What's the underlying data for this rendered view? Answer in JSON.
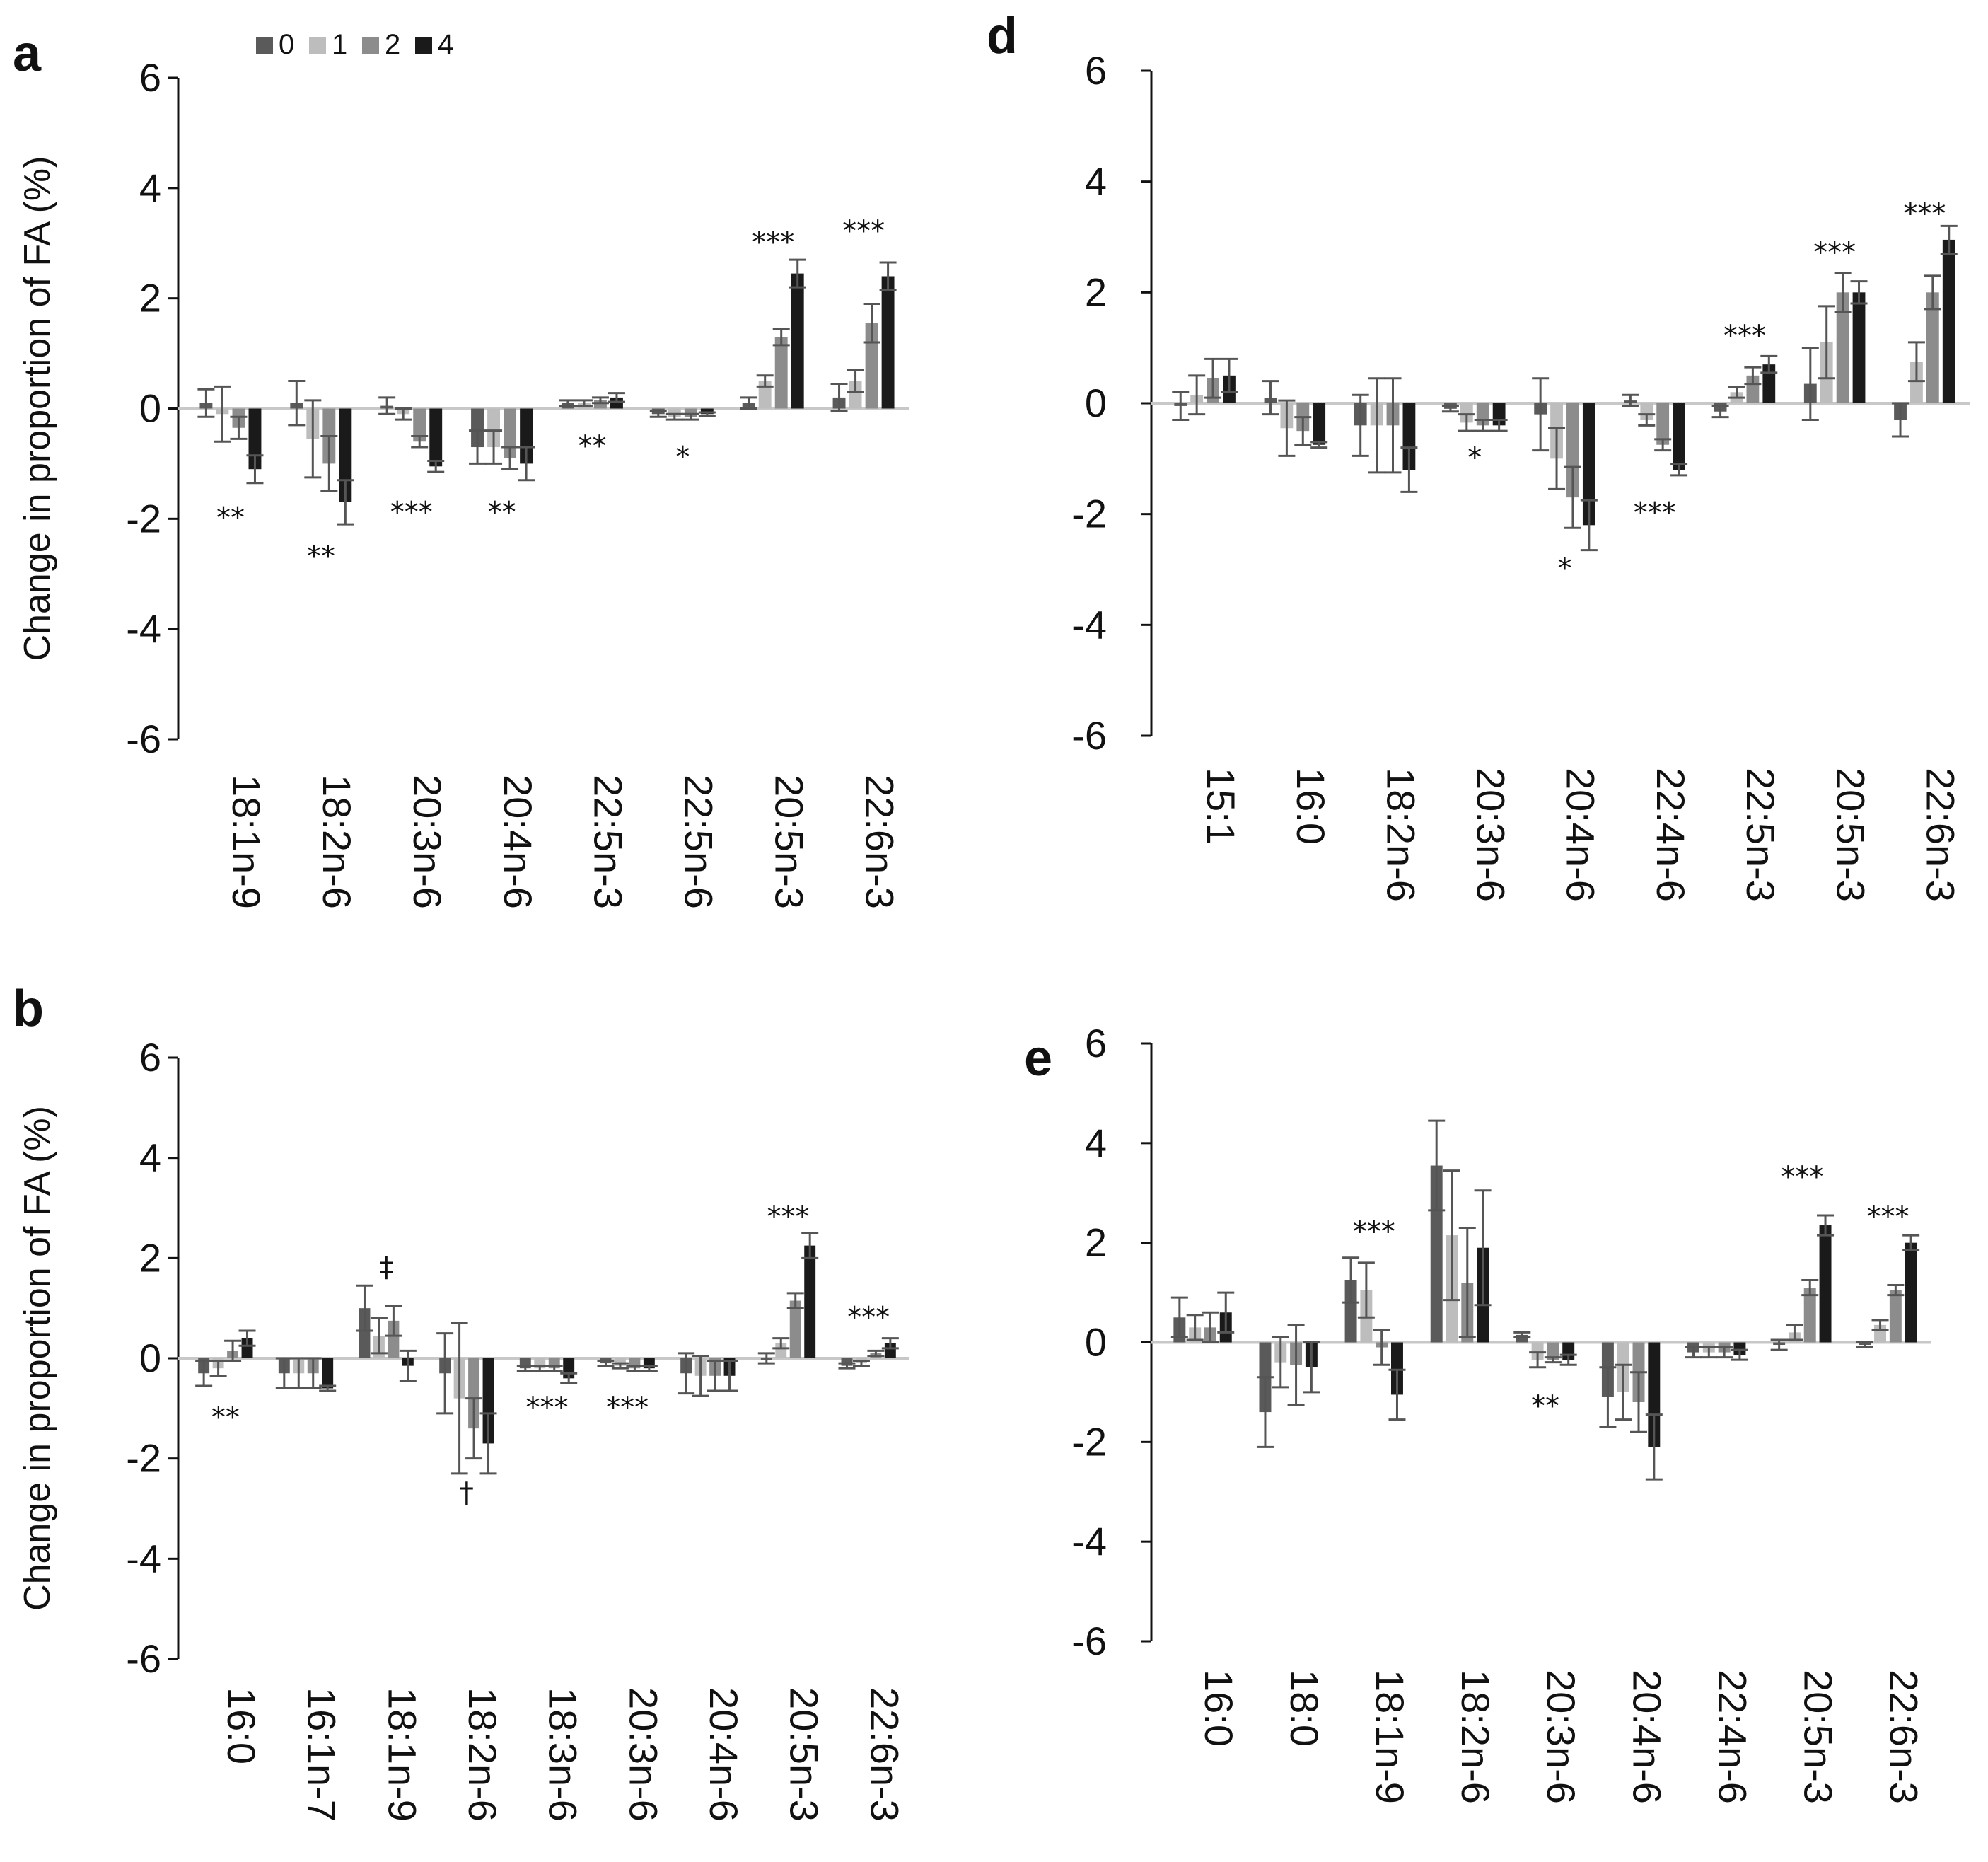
{
  "legend": {
    "title": "",
    "entries": [
      {
        "label": "0",
        "color": "#5a5a5a"
      },
      {
        "label": "1",
        "color": "#bdbdbd"
      },
      {
        "label": "2",
        "color": "#8c8c8c"
      },
      {
        "label": "4",
        "color": "#1a1a1a"
      }
    ]
  },
  "chart_data": [
    {
      "panel": "a",
      "type": "bar",
      "ylabel": "Change in proportion of FA (%)",
      "ylim": [
        -6,
        6
      ],
      "yticks": [
        "6",
        "4",
        "2",
        "0",
        "-2",
        "-4",
        "-6"
      ],
      "categories": [
        "18:1n-9",
        "18:2n-6",
        "20:3n-6",
        "20:4n-6",
        "22:5n-3",
        "22:5n-6",
        "20:5n-3",
        "22:6n-3"
      ],
      "series": [
        {
          "name": "0",
          "values": [
            0.1,
            0.1,
            0.05,
            -0.7,
            0.1,
            -0.1,
            0.1,
            0.2
          ],
          "errors": [
            0.25,
            0.4,
            0.15,
            0.3,
            0.05,
            0.05,
            0.1,
            0.25
          ]
        },
        {
          "name": "1",
          "values": [
            -0.1,
            -0.55,
            -0.1,
            -0.7,
            0.1,
            -0.15,
            0.5,
            0.5
          ],
          "errors": [
            0.5,
            0.7,
            0.1,
            0.3,
            0.05,
            0.05,
            0.1,
            0.2
          ]
        },
        {
          "name": "2",
          "values": [
            -0.35,
            -1.0,
            -0.6,
            -0.9,
            0.15,
            -0.15,
            1.3,
            1.55
          ],
          "errors": [
            0.2,
            0.5,
            0.1,
            0.2,
            0.05,
            0.05,
            0.15,
            0.35
          ]
        },
        {
          "name": "4",
          "values": [
            -1.1,
            -1.7,
            -1.05,
            -1.0,
            0.2,
            -0.1,
            2.45,
            2.4
          ],
          "errors": [
            0.25,
            0.4,
            0.1,
            0.3,
            0.08,
            0.03,
            0.25,
            0.25
          ]
        }
      ],
      "annotations": [
        {
          "category": "18:1n-9",
          "text": "**",
          "value": -2.0
        },
        {
          "category": "18:2n-6",
          "text": "**",
          "value": -2.7
        },
        {
          "category": "20:3n-6",
          "text": "***",
          "value": -1.9
        },
        {
          "category": "20:4n-6",
          "text": "**",
          "value": -1.9
        },
        {
          "category": "22:5n-3",
          "text": "**",
          "value": -0.7
        },
        {
          "category": "22:5n-6",
          "text": "*",
          "value": -0.9
        },
        {
          "category": "20:5n-3",
          "text": "***",
          "value": 3.0
        },
        {
          "category": "22:6n-3",
          "text": "***",
          "value": 3.2
        }
      ]
    },
    {
      "panel": "b",
      "type": "bar",
      "ylabel": "Change in proportion of FA (%)",
      "ylim": [
        -6,
        6
      ],
      "yticks": [
        "6",
        "4",
        "2",
        "0",
        "-2",
        "-4",
        "-6"
      ],
      "categories": [
        "16:0",
        "16:1n-7",
        "18:1n-9",
        "18:2n-6",
        "18:3n-6",
        "20:3n-6",
        "20:4n-6",
        "20:5n-3",
        "22:6n-3"
      ],
      "series": [
        {
          "name": "0",
          "values": [
            -0.3,
            -0.3,
            1.0,
            -0.3,
            -0.2,
            -0.1,
            -0.3,
            0.0,
            -0.15
          ],
          "errors": [
            0.25,
            0.3,
            0.45,
            0.8,
            0.05,
            0.05,
            0.4,
            0.1,
            0.05
          ]
        },
        {
          "name": "1",
          "values": [
            -0.2,
            -0.3,
            0.45,
            -0.8,
            -0.2,
            -0.15,
            -0.35,
            0.3,
            -0.1
          ],
          "errors": [
            0.15,
            0.3,
            0.35,
            1.5,
            0.05,
            0.05,
            0.4,
            0.1,
            0.05
          ]
        },
        {
          "name": "2",
          "values": [
            0.15,
            -0.3,
            0.75,
            -1.4,
            -0.2,
            -0.2,
            -0.35,
            1.15,
            0.1
          ],
          "errors": [
            0.2,
            0.3,
            0.3,
            0.6,
            0.05,
            0.05,
            0.3,
            0.15,
            0.05
          ]
        },
        {
          "name": "4",
          "values": [
            0.4,
            -0.6,
            -0.15,
            -1.7,
            -0.4,
            -0.2,
            -0.35,
            2.25,
            0.3
          ],
          "errors": [
            0.15,
            0.05,
            0.3,
            0.6,
            0.1,
            0.05,
            0.3,
            0.25,
            0.1
          ]
        }
      ],
      "annotations": [
        {
          "category": "16:0",
          "text": "**",
          "value": -1.2
        },
        {
          "category": "18:1n-9",
          "text": "‡",
          "value": 1.8
        },
        {
          "category": "18:2n-6",
          "text": "†",
          "value": -2.7
        },
        {
          "category": "18:3n-6",
          "text": "***",
          "value": -1.0
        },
        {
          "category": "20:3n-6",
          "text": "***",
          "value": -1.0
        },
        {
          "category": "20:5n-3",
          "text": "***",
          "value": 2.8
        },
        {
          "category": "22:6n-3",
          "text": "***",
          "value": 0.8
        }
      ]
    },
    {
      "panel": "d",
      "type": "bar",
      "ylabel": "",
      "ylim": [
        -6,
        6
      ],
      "yticks": [
        "6",
        "4",
        "2",
        "0",
        "-2",
        "-4",
        "-6"
      ],
      "categories": [
        "15:1",
        "16:0",
        "18:2n-6",
        "20:3n-6",
        "20:4n-6",
        "22:4n-6",
        "22:5n-3",
        "20:5n-3",
        "22:6n-3"
      ],
      "series": [
        {
          "name": "0",
          "values": [
            -0.05,
            0.1,
            -0.4,
            -0.1,
            -0.2,
            0.05,
            -0.15,
            0.35,
            -0.3
          ],
          "errors": [
            0.25,
            0.3,
            0.55,
            0.05,
            0.65,
            0.1,
            0.1,
            0.65,
            0.3
          ]
        },
        {
          "name": "1",
          "values": [
            0.15,
            -0.45,
            -0.4,
            -0.35,
            -1.0,
            -0.3,
            0.2,
            1.1,
            0.75
          ],
          "errors": [
            0.35,
            0.5,
            0.85,
            0.15,
            0.55,
            0.1,
            0.1,
            0.65,
            0.35
          ]
        },
        {
          "name": "2",
          "values": [
            0.45,
            -0.5,
            -0.4,
            -0.4,
            -1.7,
            -0.75,
            0.5,
            2.0,
            2.0
          ],
          "errors": [
            0.35,
            0.25,
            0.85,
            0.1,
            0.55,
            0.1,
            0.15,
            0.35,
            0.3
          ]
        },
        {
          "name": "4",
          "values": [
            0.5,
            -0.75,
            -1.2,
            -0.4,
            -2.2,
            -1.2,
            0.7,
            2.0,
            2.95
          ],
          "errors": [
            0.3,
            0.05,
            0.4,
            0.1,
            0.45,
            0.1,
            0.15,
            0.2,
            0.25
          ]
        }
      ],
      "annotations": [
        {
          "category": "20:3n-6",
          "text": "*",
          "value": -1.0
        },
        {
          "category": "20:4n-6",
          "text": "*",
          "value": -3.0
        },
        {
          "category": "22:4n-6",
          "text": "***",
          "value": -2.0
        },
        {
          "category": "22:5n-3",
          "text": "***",
          "value": 1.2
        },
        {
          "category": "20:5n-3",
          "text": "***",
          "value": 2.7
        },
        {
          "category": "22:6n-3",
          "text": "***",
          "value": 3.4
        }
      ]
    },
    {
      "panel": "e",
      "type": "bar",
      "ylabel": "",
      "ylim": [
        -6,
        6
      ],
      "yticks": [
        "6",
        "4",
        "2",
        "0",
        "-2",
        "-4",
        "-6"
      ],
      "categories": [
        "16:0",
        "18:0",
        "18:1n-9",
        "18:2n-6",
        "20:3n-6",
        "20:4n-6",
        "22:4n-6",
        "20:5n-3",
        "22:6n-3"
      ],
      "series": [
        {
          "name": "0",
          "values": [
            0.5,
            -1.4,
            1.25,
            3.55,
            0.15,
            -1.1,
            -0.2,
            -0.05,
            -0.05
          ],
          "errors": [
            0.4,
            0.7,
            0.45,
            0.9,
            0.05,
            0.6,
            0.1,
            0.1,
            0.05
          ]
        },
        {
          "name": "1",
          "values": [
            0.3,
            -0.4,
            1.05,
            2.15,
            -0.35,
            -1.0,
            -0.2,
            0.2,
            0.35
          ],
          "errors": [
            0.25,
            0.5,
            0.55,
            1.3,
            0.15,
            0.55,
            0.1,
            0.15,
            0.1
          ]
        },
        {
          "name": "2",
          "values": [
            0.3,
            -0.45,
            -0.1,
            1.2,
            -0.35,
            -1.2,
            -0.2,
            1.1,
            1.05
          ],
          "errors": [
            0.3,
            0.8,
            0.35,
            1.1,
            0.05,
            0.6,
            0.1,
            0.15,
            0.1
          ]
        },
        {
          "name": "4",
          "values": [
            0.6,
            -0.5,
            -1.05,
            1.9,
            -0.35,
            -2.1,
            -0.25,
            2.35,
            2.0
          ],
          "errors": [
            0.4,
            0.5,
            0.5,
            1.15,
            0.1,
            0.65,
            0.1,
            0.2,
            0.15
          ]
        }
      ],
      "annotations": [
        {
          "category": "18:1n-9",
          "text": "***",
          "value": 2.2
        },
        {
          "category": "20:3n-6",
          "text": "**",
          "value": -1.3
        },
        {
          "category": "20:5n-3",
          "text": "***",
          "value": 3.3
        },
        {
          "category": "22:6n-3",
          "text": "***",
          "value": 2.5
        }
      ]
    }
  ]
}
